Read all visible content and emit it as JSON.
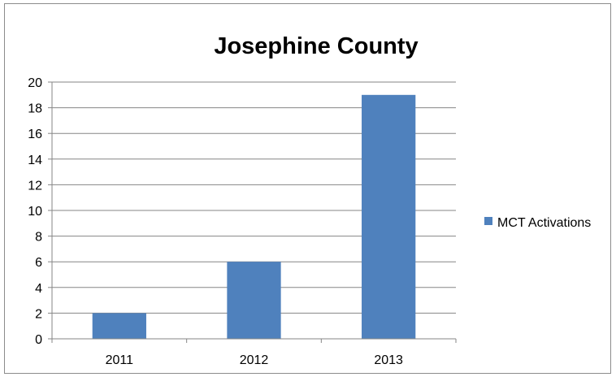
{
  "chart_data": {
    "type": "bar",
    "title": "Josephine County",
    "categories": [
      "2011",
      "2012",
      "2013"
    ],
    "series": [
      {
        "name": "MCT Activations",
        "values": [
          2,
          6,
          19
        ],
        "color": "#4f81bd"
      }
    ],
    "ylim": [
      0,
      20
    ],
    "yticks": [
      0,
      2,
      4,
      6,
      8,
      10,
      12,
      14,
      16,
      18,
      20
    ],
    "xlabel": "",
    "ylabel": "",
    "grid": true,
    "gridline_color": "#868686",
    "legend_position": "right"
  }
}
